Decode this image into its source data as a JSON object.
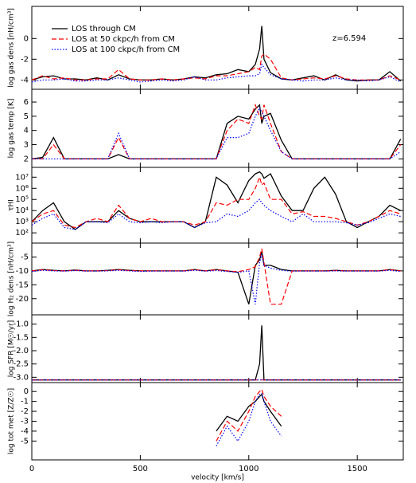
{
  "chart_data": [
    {
      "type": "line",
      "ylabel": "log gas dens [nH/cm³]",
      "annotation": "z=6.594",
      "legend": "upper left",
      "xlim": [
        0,
        1712
      ],
      "ylim": [
        -4.9,
        3.1
      ],
      "yticks": [
        0,
        -2,
        -4
      ],
      "x": [
        0,
        50,
        100,
        150,
        200,
        250,
        300,
        350,
        400,
        450,
        500,
        550,
        600,
        650,
        700,
        750,
        800,
        850,
        900,
        950,
        1000,
        1030,
        1050,
        1060,
        1070,
        1100,
        1150,
        1200,
        1250,
        1300,
        1350,
        1400,
        1450,
        1500,
        1550,
        1600,
        1650,
        1700
      ],
      "series": [
        {
          "name": "LOS through CM",
          "color": "#000000",
          "style": "solid",
          "values": [
            -4,
            -3.7,
            -3.6,
            -3.9,
            -3.9,
            -4,
            -3.8,
            -4,
            -3.5,
            -3.9,
            -4,
            -4,
            -3.9,
            -4,
            -3.9,
            -3.7,
            -3.8,
            -3.5,
            -3.4,
            -3,
            -3.2,
            -2.5,
            -1,
            1.2,
            -2,
            -3.3,
            -3.9,
            -4,
            -3.8,
            -3.6,
            -4,
            -3.5,
            -4,
            -4.1,
            -4,
            -4,
            -3.2,
            -4.1
          ]
        },
        {
          "name": "LOS at 50 ckpc/h from CM",
          "color": "#ff0000",
          "style": "dashed",
          "values": [
            -4,
            -3.6,
            -3.9,
            -3.8,
            -4,
            -4,
            -3.9,
            -3.9,
            -3,
            -3.9,
            -4,
            -4,
            -3.9,
            -4,
            -3.9,
            -3.8,
            -3.9,
            -3.6,
            -3.6,
            -3.4,
            -3.2,
            -2.8,
            -3,
            -1.7,
            -1.5,
            -2,
            -3.8,
            -4,
            -3.9,
            -3.8,
            -3.9,
            -3.6,
            -3.9,
            -4,
            -4,
            -4,
            -3.6,
            -4
          ]
        },
        {
          "name": "LOS at 100 ckpc/h from CM",
          "color": "#0000ff",
          "style": "dotted",
          "values": [
            -4.2,
            -4,
            -4,
            -3.9,
            -4.1,
            -4.1,
            -4,
            -4,
            -3.8,
            -4,
            -4.2,
            -4.1,
            -4,
            -4.1,
            -4,
            -3.7,
            -4,
            -4,
            -3.8,
            -3.7,
            -3.6,
            -3.6,
            -3.4,
            -2.5,
            -2.8,
            -3.5,
            -3.9,
            -4,
            -4.1,
            -4,
            -4,
            -3.8,
            -4,
            -4,
            -4.1,
            -4,
            -3.7,
            -4.2
          ]
        }
      ]
    },
    {
      "type": "line",
      "ylabel": "log gas temp [K]",
      "xlim": [
        0,
        1712
      ],
      "ylim": [
        1.4,
        6.9
      ],
      "yticks": [
        2,
        3,
        4,
        5,
        6
      ],
      "x": [
        0,
        50,
        100,
        150,
        200,
        250,
        300,
        350,
        400,
        450,
        500,
        550,
        600,
        650,
        700,
        750,
        800,
        850,
        900,
        950,
        1000,
        1030,
        1050,
        1060,
        1070,
        1100,
        1150,
        1200,
        1250,
        1300,
        1350,
        1400,
        1450,
        1500,
        1550,
        1600,
        1650,
        1700
      ],
      "series": [
        {
          "color": "#000000",
          "style": "solid",
          "values": [
            2,
            2.1,
            3.5,
            2,
            2,
            2,
            2,
            2,
            2.3,
            2,
            2,
            2,
            2,
            2,
            2,
            2,
            2,
            2,
            4.5,
            5,
            4.8,
            5.5,
            5.8,
            4.5,
            5,
            5.2,
            3.3,
            2,
            2,
            2,
            2,
            2,
            2,
            2,
            2,
            2,
            2,
            3.4
          ]
        },
        {
          "color": "#ff0000",
          "style": "dashed",
          "values": [
            2,
            2,
            3,
            2,
            2,
            2,
            2,
            2,
            3.5,
            2,
            2,
            2,
            2,
            2,
            2,
            2,
            2,
            2,
            4,
            4.8,
            4.5,
            5.8,
            5,
            4.8,
            5.8,
            4.5,
            2.5,
            2,
            2,
            2,
            2,
            2,
            2,
            2,
            2,
            2,
            2,
            3
          ]
        },
        {
          "color": "#0000ff",
          "style": "dotted",
          "values": [
            2,
            2,
            2,
            2,
            2,
            2,
            2,
            2,
            3.8,
            2,
            2,
            2,
            2,
            2,
            2,
            2,
            2,
            2,
            3.5,
            3.5,
            3.8,
            5,
            5.6,
            5.3,
            5,
            4,
            2.5,
            2,
            2,
            2,
            2,
            2,
            2,
            2,
            2,
            2,
            2,
            2.5
          ]
        }
      ]
    },
    {
      "type": "line",
      "ylabel": "τHI",
      "log_y": true,
      "xlim": [
        0,
        1712
      ],
      "ylim": [
        12,
        76000000
      ],
      "yticks": [
        {
          "value": 100,
          "label": "10²"
        },
        {
          "value": 1000,
          "label": "10³"
        },
        {
          "value": 10000,
          "label": "10⁴"
        },
        {
          "value": 100000,
          "label": "10⁵"
        },
        {
          "value": 1000000,
          "label": "10⁶"
        },
        {
          "value": 10000000,
          "label": "10⁷"
        }
      ],
      "x": [
        0,
        50,
        100,
        150,
        200,
        250,
        300,
        350,
        400,
        450,
        500,
        550,
        600,
        650,
        700,
        750,
        800,
        850,
        900,
        950,
        1000,
        1030,
        1050,
        1060,
        1070,
        1100,
        1150,
        1200,
        1250,
        1300,
        1350,
        1400,
        1450,
        1500,
        1550,
        1600,
        1650,
        1700
      ],
      "series": [
        {
          "color": "#000000",
          "style": "solid",
          "values": [
            1000,
            10000,
            50000,
            1000,
            200,
            1000,
            1000,
            1000,
            10000,
            2000,
            1000,
            1000,
            1000,
            1000,
            1000,
            300,
            1000,
            10000000,
            2000000,
            50000,
            5000000,
            20000000,
            30000000,
            20000000,
            8000000,
            20000000,
            200000,
            10000,
            10000,
            1000000,
            10000000,
            300000,
            1000,
            300,
            1000,
            3000,
            30000,
            10000
          ]
        },
        {
          "color": "#ff0000",
          "style": "dashed",
          "values": [
            1000,
            5000,
            10000,
            500,
            300,
            1000,
            2000,
            1000,
            30000,
            2000,
            1000,
            2000,
            1000,
            1000,
            1000,
            500,
            1000,
            50000,
            30000,
            100000,
            100000,
            1000000,
            10000000,
            2000000,
            3000000,
            100000,
            100000,
            5000,
            8000,
            3000,
            3000,
            2000,
            1000,
            500,
            1000,
            3000,
            10000,
            5000
          ]
        },
        {
          "color": "#0000ff",
          "style": "dotted",
          "values": [
            500,
            2000,
            5000,
            300,
            200,
            1000,
            1000,
            800,
            5000,
            1000,
            800,
            1000,
            800,
            1000,
            1000,
            300,
            800,
            1000,
            5000,
            3000,
            10000,
            50000,
            100000,
            50000,
            30000,
            10000,
            3000,
            1000,
            5000,
            1000,
            1000,
            1000,
            800,
            500,
            800,
            2000,
            5000,
            3000
          ]
        }
      ]
    },
    {
      "type": "line",
      "ylabel": "log H₂ dens [nH/cm³]",
      "xlim": [
        0,
        1712
      ],
      "ylim": [
        -25.8,
        0
      ],
      "yticks": [
        -5,
        -10,
        -15,
        -20
      ],
      "x": [
        0,
        50,
        100,
        150,
        200,
        250,
        300,
        350,
        400,
        450,
        500,
        550,
        600,
        650,
        700,
        750,
        800,
        850,
        900,
        950,
        1000,
        1030,
        1050,
        1060,
        1070,
        1100,
        1150,
        1200,
        1250,
        1300,
        1350,
        1400,
        1450,
        1500,
        1550,
        1600,
        1650,
        1700
      ],
      "series": [
        {
          "color": "#000000",
          "style": "solid",
          "values": [
            -10,
            -9.5,
            -9.8,
            -10,
            -9.7,
            -10,
            -10,
            -9.8,
            -9.5,
            -9.8,
            -10,
            -10,
            -10,
            -10,
            -10,
            -9.5,
            -10,
            -9.5,
            -10,
            -10.5,
            -22,
            -8,
            -6,
            -3,
            -8,
            -8,
            -9.5,
            -10,
            -10,
            -10,
            -10,
            -9.8,
            -10,
            -10,
            -10,
            -10,
            -9.5,
            -10
          ]
        },
        {
          "color": "#ff0000",
          "style": "dashed",
          "values": [
            -10,
            -9.6,
            -9.9,
            -10,
            -9.8,
            -10,
            -10,
            -9.9,
            -9.6,
            -9.9,
            -10,
            -10,
            -10,
            -10,
            -10,
            -9.6,
            -10,
            -9.6,
            -10,
            -10.3,
            -9.5,
            -8.5,
            -5,
            -2,
            -7,
            -22,
            -22,
            -10,
            -10,
            -10,
            -10,
            -9.9,
            -10,
            -10,
            -10,
            -10,
            -9.6,
            -10
          ]
        },
        {
          "color": "#0000ff",
          "style": "dotted",
          "values": [
            -10.2,
            -9.8,
            -10,
            -10.1,
            -9.9,
            -10.1,
            -10.1,
            -10,
            -9.8,
            -10,
            -10.2,
            -10.1,
            -10.1,
            -10.1,
            -10.1,
            -9.8,
            -10.1,
            -9.9,
            -10.2,
            -10.5,
            -10,
            -22,
            -7,
            -4,
            -8,
            -9,
            -9.8,
            -10.1,
            -10.1,
            -10.1,
            -10.1,
            -10,
            -10.1,
            -10.1,
            -10.1,
            -10.1,
            -9.8,
            -10.2
          ]
        }
      ]
    },
    {
      "type": "line",
      "ylabel": "log SFR [M☉/yr]",
      "xlim": [
        0,
        1712
      ],
      "ylim": [
        -3.2,
        -0.65
      ],
      "yticks": [
        {
          "value": -1,
          "label": "-1.0"
        },
        -1.5,
        {
          "value": -2,
          "label": "-2.0"
        },
        -2.5,
        {
          "value": -3,
          "label": "-3.0"
        }
      ],
      "x": [
        0,
        50,
        100,
        150,
        200,
        250,
        300,
        350,
        400,
        450,
        500,
        550,
        600,
        650,
        700,
        750,
        800,
        850,
        900,
        950,
        1000,
        1030,
        1050,
        1060,
        1070,
        1100,
        1150,
        1200,
        1250,
        1300,
        1350,
        1400,
        1450,
        1500,
        1550,
        1600,
        1650,
        1700
      ],
      "series": [
        {
          "color": "#000000",
          "style": "solid",
          "values": [
            -3.1,
            -3.1,
            -3.1,
            -3.1,
            -3.1,
            -3.1,
            -3.1,
            -3.1,
            -3.1,
            -3.1,
            -3.1,
            -3.1,
            -3.1,
            -3.1,
            -3.1,
            -3.1,
            -3.1,
            -3.1,
            -3.1,
            -3.1,
            -3.1,
            -3.1,
            -2.5,
            -1.05,
            -3.1,
            -3.1,
            -3.1,
            -3.1,
            -3.1,
            -3.1,
            -3.1,
            -3.1,
            -3.1,
            -3.1,
            -3.1,
            -3.1,
            -3.1,
            -3.1
          ]
        },
        {
          "color": "#ff0000",
          "style": "dashed",
          "values": [
            -3.1,
            -3.1,
            -3.1,
            -3.1,
            -3.1,
            -3.1,
            -3.1,
            -3.1,
            -3.1,
            -3.1,
            -3.1,
            -3.1,
            -3.1,
            -3.1,
            -3.1,
            -3.1,
            -3.1,
            -3.1,
            -3.1,
            -3.1,
            -3.1,
            -3.1,
            -3.1,
            -3.1,
            -3.1,
            -3.1,
            -3.1,
            -3.1,
            -3.1,
            -3.1,
            -3.1,
            -3.1,
            -3.1,
            -3.1,
            -3.1,
            -3.1,
            -3.1,
            -3.1
          ]
        },
        {
          "color": "#0000ff",
          "style": "dotted",
          "values": [
            -3.1,
            -3.1,
            -3.1,
            -3.1,
            -3.1,
            -3.1,
            -3.1,
            -3.1,
            -3.1,
            -3.1,
            -3.1,
            -3.1,
            -3.1,
            -3.1,
            -3.1,
            -3.1,
            -3.1,
            -3.1,
            -3.1,
            -3.1,
            -3.1,
            -3.1,
            -3.1,
            -3.1,
            -3.1,
            -3.1,
            -3.1,
            -3.1,
            -3.1,
            -3.1,
            -3.1,
            -3.1,
            -3.1,
            -3.1,
            -3.1,
            -3.1,
            -3.1,
            -3.1
          ]
        }
      ]
    },
    {
      "type": "line",
      "ylabel": "log tot met [Z/Z☉]",
      "xlabel": "velocity [km/s]",
      "xlim": [
        0,
        1712
      ],
      "ylim": [
        -6.9,
        0.9
      ],
      "yticks": [
        0,
        -1,
        -2,
        -3,
        -4,
        -5
      ],
      "xticks": [
        0,
        500,
        1000,
        1500
      ],
      "x": [
        0,
        50,
        100,
        150,
        200,
        250,
        300,
        350,
        400,
        450,
        500,
        550,
        600,
        650,
        700,
        750,
        800,
        850,
        900,
        950,
        1000,
        1030,
        1050,
        1060,
        1070,
        1100,
        1150,
        1200,
        1250,
        1300,
        1350,
        1400,
        1450,
        1500,
        1550,
        1600,
        1650,
        1700
      ],
      "series": [
        {
          "color": "#000000",
          "style": "solid",
          "values": [
            null,
            null,
            null,
            null,
            null,
            null,
            null,
            null,
            null,
            null,
            null,
            null,
            null,
            null,
            null,
            null,
            null,
            -4,
            -2.5,
            -3,
            -1.5,
            -1,
            -0.5,
            -0.3,
            -1,
            -2,
            -3.5,
            null,
            null,
            null,
            null,
            null,
            null,
            null,
            null,
            null,
            null,
            null
          ]
        },
        {
          "color": "#ff0000",
          "style": "dashed",
          "values": [
            null,
            null,
            null,
            null,
            null,
            null,
            null,
            null,
            null,
            null,
            null,
            null,
            null,
            null,
            null,
            null,
            null,
            -5,
            -3,
            -4,
            -2,
            -0.5,
            0,
            0.2,
            -0.5,
            -1.5,
            -2.5,
            null,
            null,
            null,
            null,
            null,
            null,
            null,
            null,
            null,
            null,
            null
          ]
        },
        {
          "color": "#0000ff",
          "style": "dotted",
          "values": [
            null,
            null,
            null,
            null,
            null,
            null,
            null,
            null,
            null,
            null,
            null,
            null,
            null,
            null,
            null,
            null,
            null,
            -5.5,
            -3.5,
            -5,
            -3,
            -1,
            -0.3,
            -0.2,
            -1,
            -3,
            -4.5,
            null,
            null,
            null,
            null,
            null,
            null,
            null,
            null,
            null,
            null,
            null
          ]
        }
      ]
    }
  ]
}
